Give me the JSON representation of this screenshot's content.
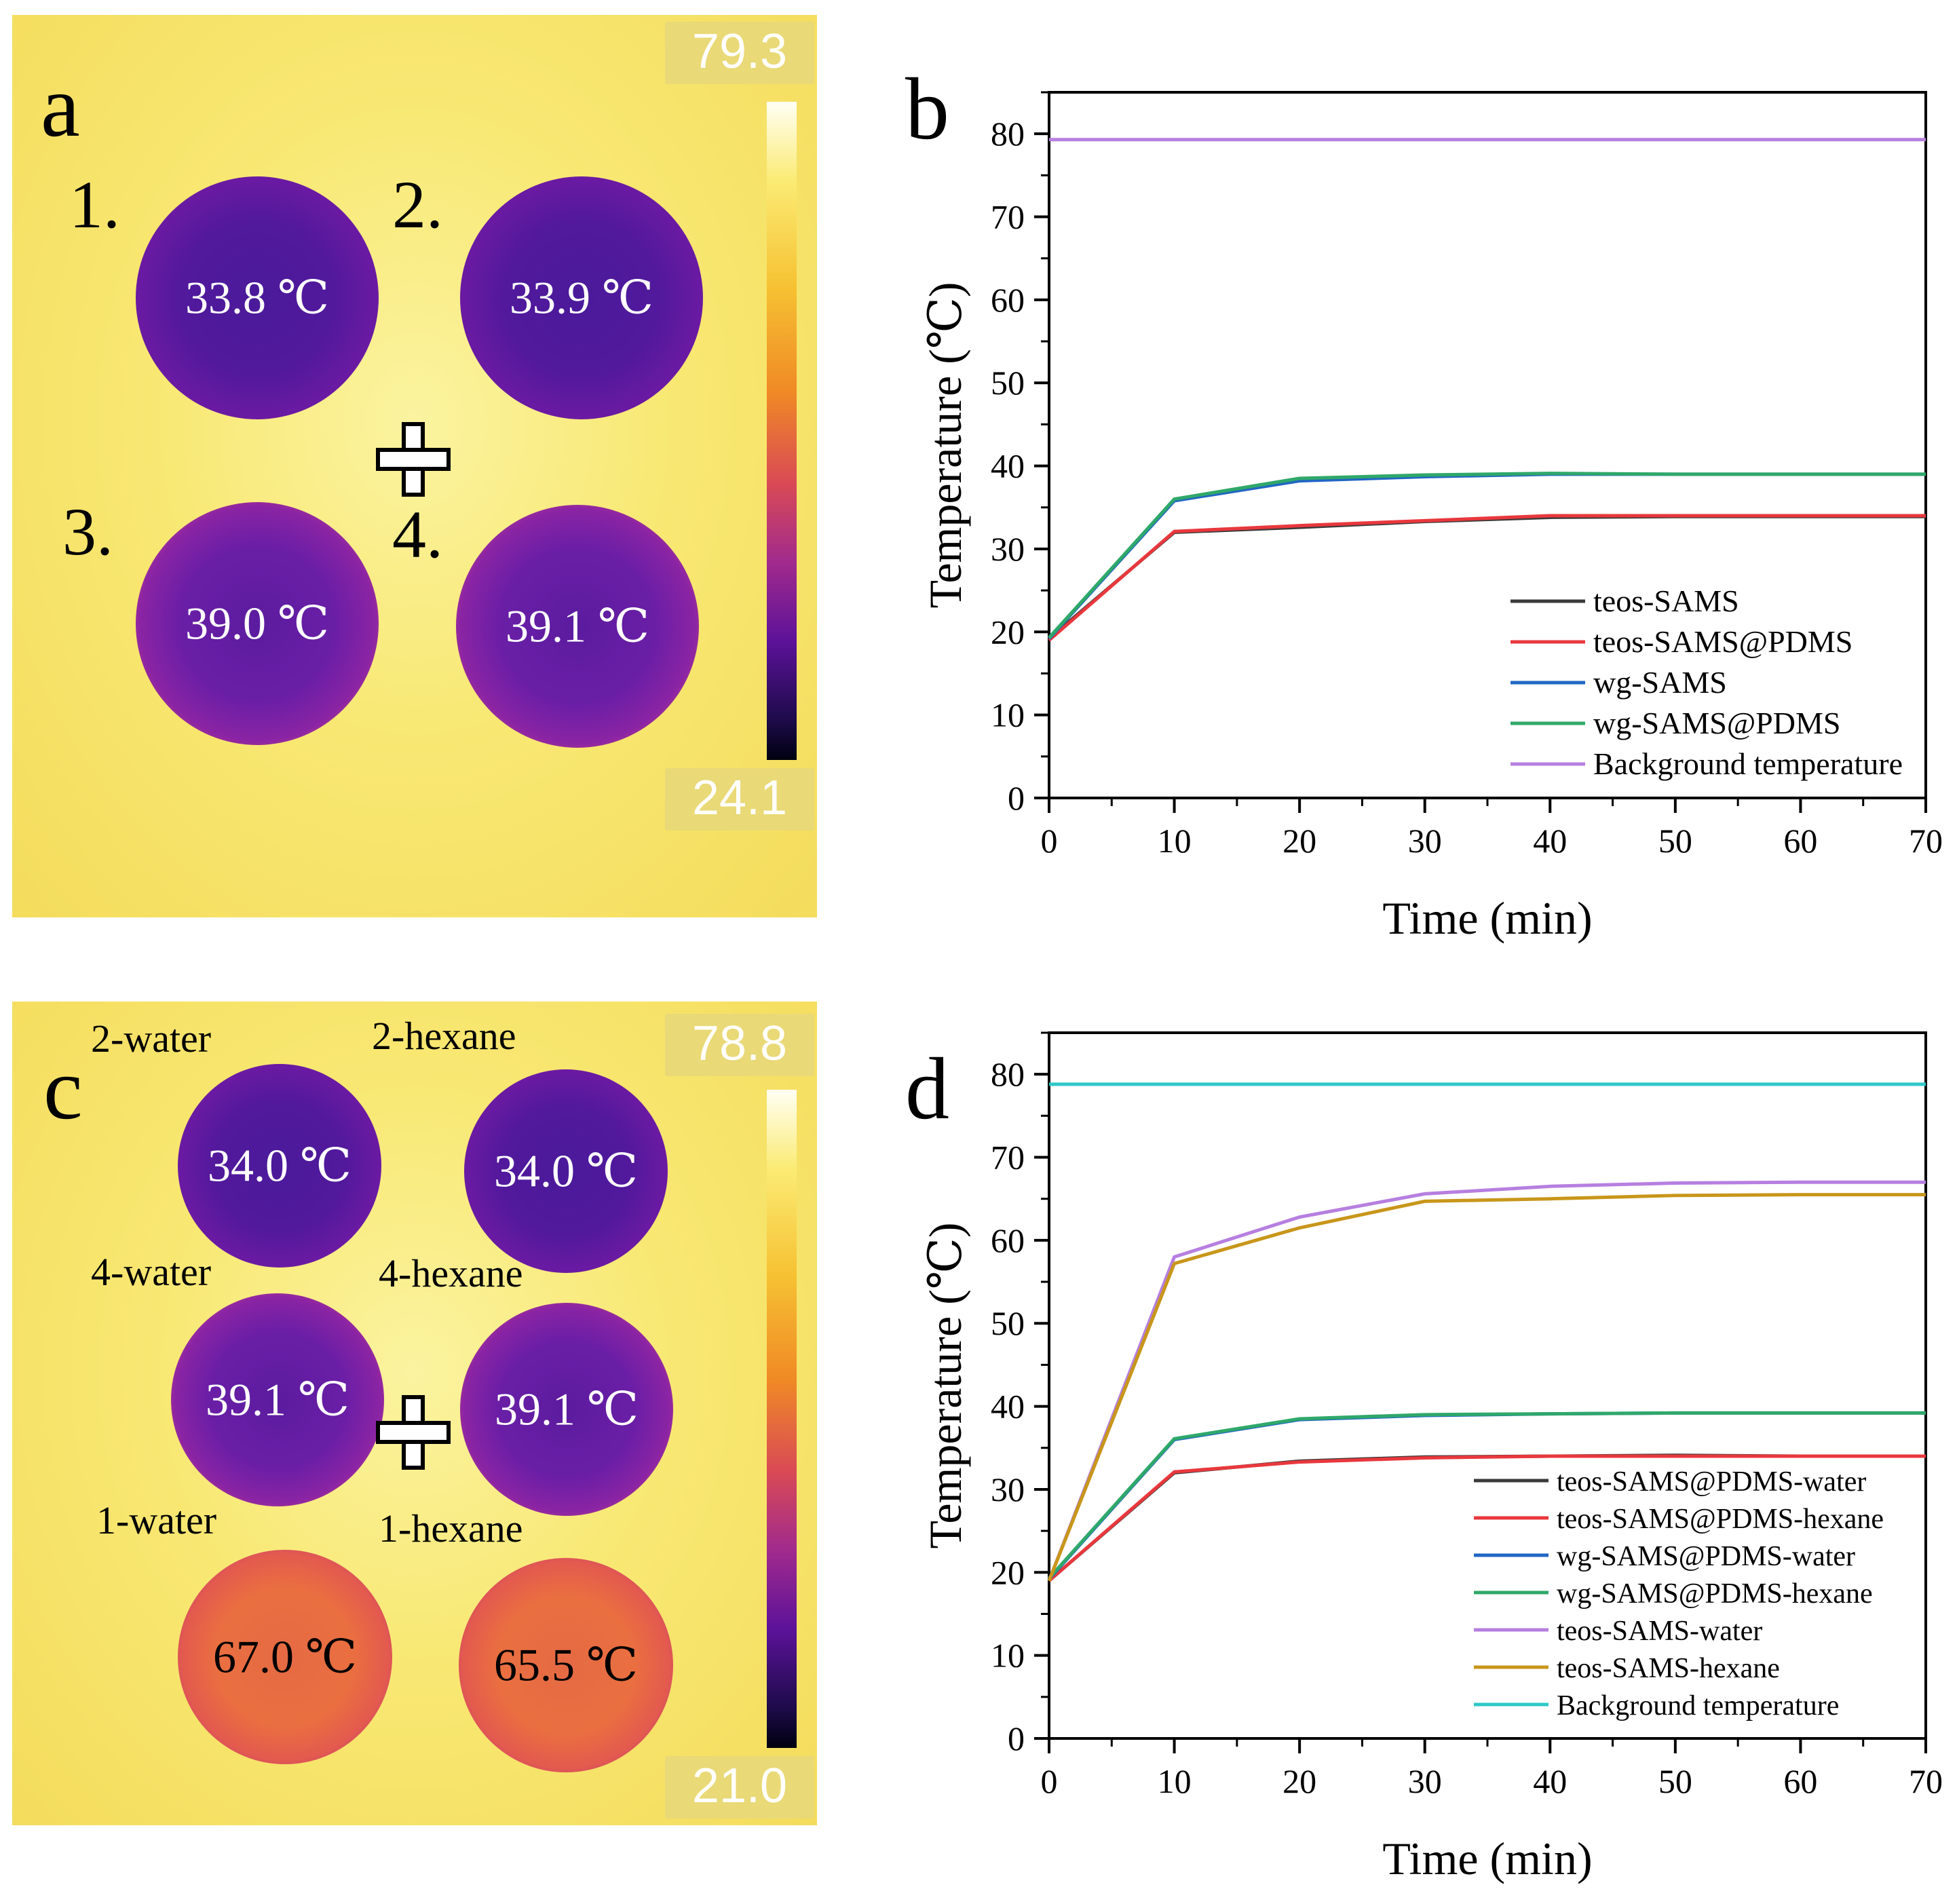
{
  "panels": {
    "a": {
      "letter": "a",
      "scale_max": "79.3",
      "scale_min": "24.1",
      "wells": [
        {
          "num": "1.",
          "temp": "33.8 ℃"
        },
        {
          "num": "2.",
          "temp": "33.9 ℃"
        },
        {
          "num": "3.",
          "temp": "39.0 ℃"
        },
        {
          "num": "4.",
          "temp": "39.1 ℃"
        }
      ]
    },
    "c": {
      "letter": "c",
      "scale_max": "78.8",
      "scale_min": "21.0",
      "wells": [
        {
          "label": "2-water",
          "temp": "34.0 ℃"
        },
        {
          "label": "2-hexane",
          "temp": "34.0 ℃"
        },
        {
          "label": "4-water",
          "temp": "39.1 ℃"
        },
        {
          "label": "4-hexane",
          "temp": "39.1 ℃"
        },
        {
          "label": "1-water",
          "temp": "67.0 ℃"
        },
        {
          "label": "1-hexane",
          "temp": "65.5 ℃"
        }
      ]
    }
  },
  "chart_data": [
    {
      "panel": "b",
      "type": "line",
      "xlabel": "Time (min)",
      "ylabel": "Temperature (℃)",
      "xlim": [
        0,
        70
      ],
      "ylim": [
        0,
        85
      ],
      "xticks": [
        0,
        10,
        20,
        30,
        40,
        50,
        60,
        70
      ],
      "yticks": [
        0,
        10,
        20,
        30,
        40,
        50,
        60,
        70,
        80
      ],
      "legend_position": "bottom-right",
      "x": [
        0,
        10,
        20,
        30,
        40,
        50,
        60,
        70
      ],
      "series": [
        {
          "name": "teos-SAMS",
          "color": "#3a3a3a",
          "values": [
            19.2,
            32.0,
            32.6,
            33.3,
            33.8,
            33.9,
            33.9,
            33.9
          ]
        },
        {
          "name": "teos-SAMS@PDMS",
          "color": "#e8383d",
          "values": [
            19.0,
            32.1,
            32.8,
            33.4,
            34.0,
            34.0,
            34.0,
            34.0
          ]
        },
        {
          "name": "wg-SAMS",
          "color": "#2166c4",
          "values": [
            19.2,
            35.8,
            38.2,
            38.7,
            39.0,
            39.0,
            39.0,
            39.0
          ]
        },
        {
          "name": "wg-SAMS@PDMS",
          "color": "#2fa86a",
          "values": [
            19.3,
            36.0,
            38.5,
            38.9,
            39.1,
            39.0,
            39.0,
            39.0
          ]
        },
        {
          "name": "Background temperature",
          "color": "#b67fe0",
          "values": [
            79.3,
            79.3,
            79.3,
            79.3,
            79.3,
            79.3,
            79.3,
            79.3
          ]
        }
      ]
    },
    {
      "panel": "d",
      "type": "line",
      "xlabel": "Time (min)",
      "ylabel": "Temperature (℃)",
      "xlim": [
        0,
        70
      ],
      "ylim": [
        0,
        85
      ],
      "xticks": [
        0,
        10,
        20,
        30,
        40,
        50,
        60,
        70
      ],
      "yticks": [
        0,
        10,
        20,
        30,
        40,
        50,
        60,
        70,
        80
      ],
      "legend_position": "bottom-right",
      "x": [
        0,
        10,
        20,
        30,
        40,
        50,
        60,
        70
      ],
      "series": [
        {
          "name": "teos-SAMS@PDMS-water",
          "color": "#3a3a3a",
          "values": [
            19.0,
            32.0,
            33.4,
            33.9,
            34.0,
            34.1,
            34.0,
            34.0
          ]
        },
        {
          "name": "teos-SAMS@PDMS-hexane",
          "color": "#e8383d",
          "values": [
            19.0,
            32.1,
            33.3,
            33.8,
            34.0,
            34.0,
            34.0,
            34.0
          ]
        },
        {
          "name": "wg-SAMS@PDMS-water",
          "color": "#2166c4",
          "values": [
            19.2,
            36.0,
            38.4,
            38.9,
            39.1,
            39.2,
            39.2,
            39.2
          ]
        },
        {
          "name": "wg-SAMS@PDMS-hexane",
          "color": "#2fa86a",
          "values": [
            19.3,
            36.1,
            38.5,
            39.0,
            39.1,
            39.2,
            39.2,
            39.2
          ]
        },
        {
          "name": "teos-SAMS-water",
          "color": "#b67fe0",
          "values": [
            19.0,
            58.0,
            62.8,
            65.6,
            66.5,
            66.9,
            67.0,
            67.0
          ]
        },
        {
          "name": "teos-SAMS-hexane",
          "color": "#c8961a",
          "values": [
            19.0,
            57.2,
            61.5,
            64.7,
            65.0,
            65.4,
            65.5,
            65.5
          ]
        },
        {
          "name": "Background temperature",
          "color": "#2ec8c8",
          "values": [
            78.8,
            78.8,
            78.8,
            78.8,
            78.8,
            78.8,
            78.8,
            78.8
          ]
        }
      ]
    }
  ]
}
